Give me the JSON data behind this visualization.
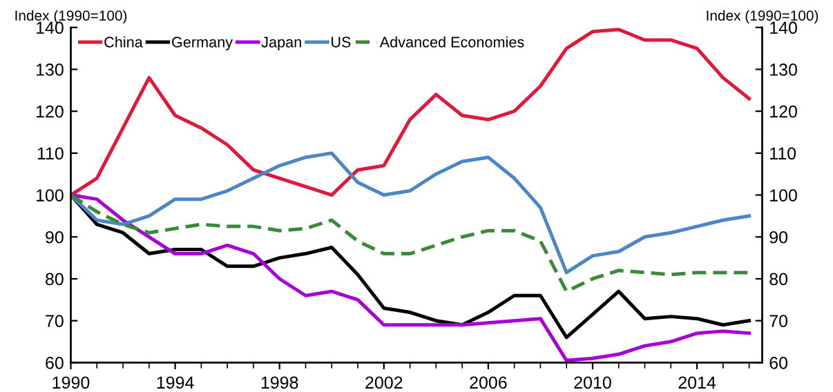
{
  "chart_data": {
    "type": "line",
    "ylabel": "Index (1990=100)",
    "y2label": "Index (1990=100)",
    "x": [
      1990,
      1991,
      1992,
      1993,
      1994,
      1995,
      1996,
      1997,
      1998,
      1999,
      2000,
      2001,
      2002,
      2003,
      2004,
      2005,
      2006,
      2007,
      2008,
      2009,
      2010,
      2011,
      2012,
      2013,
      2014,
      2015,
      2016
    ],
    "xlim": [
      1990,
      2016.5
    ],
    "xticks": [
      1990,
      1994,
      1998,
      2002,
      2006,
      2010,
      2014
    ],
    "ylim": [
      60,
      140
    ],
    "yticks": [
      60,
      70,
      80,
      90,
      100,
      110,
      120,
      130,
      140
    ],
    "y2lim": [
      60,
      140
    ],
    "y2ticks": [
      60,
      70,
      80,
      90,
      100,
      110,
      120,
      130,
      140
    ],
    "grid": false,
    "legend": "top left",
    "marker": "none",
    "series": [
      {
        "name": "China",
        "color": "#e0193a",
        "line_style": "solid",
        "values": [
          100,
          104,
          116,
          128,
          119,
          116,
          112,
          106,
          104,
          102,
          100,
          106,
          107,
          118,
          124,
          119,
          118,
          120,
          126,
          135,
          139,
          139.5,
          137,
          137,
          135,
          128,
          123
        ]
      },
      {
        "name": "Germany",
        "color": "#000000",
        "line_style": "solid",
        "values": [
          100,
          93,
          91,
          86,
          87,
          87,
          83,
          83,
          85,
          86,
          87.5,
          81,
          73,
          72,
          70,
          69,
          72,
          76,
          76,
          66,
          71.5,
          77,
          70.5,
          71,
          70.5,
          69,
          70
        ]
      },
      {
        "name": "Japan",
        "color": "#a800d8",
        "line_style": "solid",
        "values": [
          100,
          99,
          94,
          90,
          86,
          86,
          88,
          86,
          80,
          76,
          77,
          75,
          69,
          69,
          69,
          69,
          69.5,
          70,
          70.5,
          60.5,
          61,
          62,
          64,
          65,
          67,
          67.5,
          67
        ]
      },
      {
        "name": "US",
        "color": "#4a86c8",
        "line_style": "solid",
        "values": [
          100,
          94,
          93,
          95,
          99,
          99,
          101,
          104,
          107,
          109,
          110,
          103,
          100,
          101,
          105,
          108,
          109,
          104,
          97,
          81.5,
          85.5,
          86.5,
          90,
          91,
          92.5,
          94,
          95
        ]
      },
      {
        "name": "Advanced Economies",
        "color": "#3a8a3a",
        "line_style": "dashed",
        "values": [
          100,
          96,
          93,
          91,
          92,
          93,
          92.5,
          92.5,
          91.5,
          92,
          94,
          89,
          86,
          86,
          88,
          90,
          91.5,
          91.5,
          89,
          77,
          80,
          82,
          81.5,
          81,
          81.5,
          81.5,
          81.5
        ]
      }
    ]
  }
}
